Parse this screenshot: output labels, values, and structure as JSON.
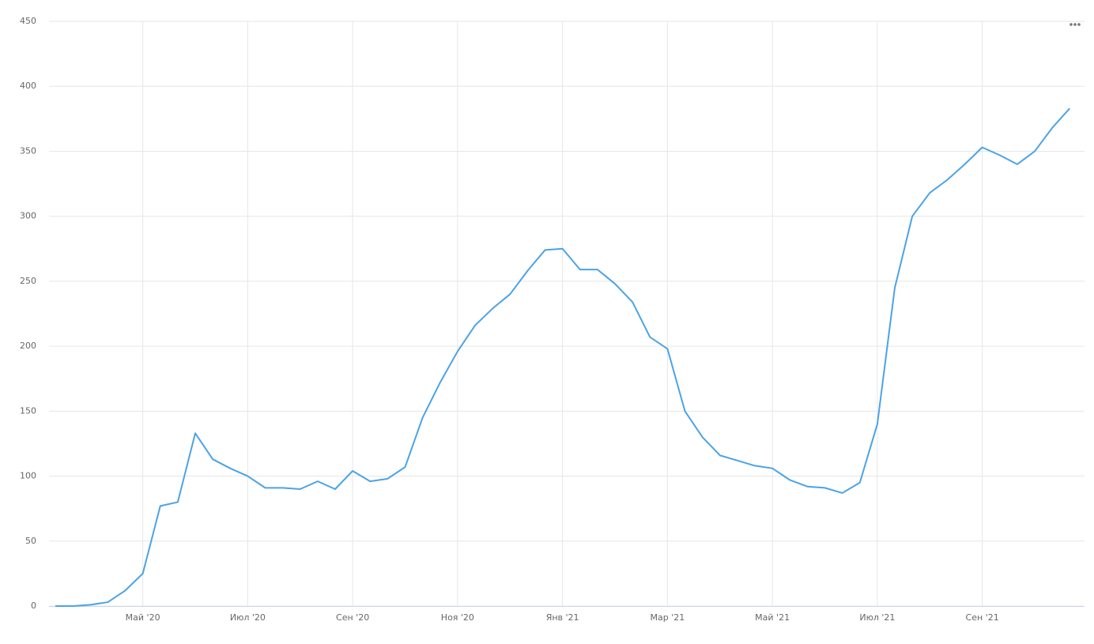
{
  "chart_data": {
    "type": "line",
    "categories": [
      null,
      null,
      null,
      null,
      null,
      "Май '20",
      null,
      null,
      null,
      null,
      null,
      "Июл '20",
      null,
      null,
      null,
      null,
      null,
      "Сен '20",
      null,
      null,
      null,
      null,
      null,
      "Ноя '20",
      null,
      null,
      null,
      null,
      null,
      "Янв '21",
      null,
      null,
      null,
      null,
      null,
      "Мар '21",
      null,
      null,
      null,
      null,
      null,
      "Май '21",
      null,
      null,
      null,
      null,
      null,
      "Июл '21",
      null,
      null,
      null,
      null,
      null,
      "Сен '21",
      null,
      null,
      null,
      null,
      null
    ],
    "values": [
      0,
      0,
      1,
      3,
      12,
      25,
      77,
      80,
      133,
      113,
      106,
      100,
      91,
      91,
      90,
      96,
      90,
      104,
      96,
      98,
      107,
      145,
      172,
      196,
      216,
      229,
      240,
      258,
      274,
      275,
      259,
      259,
      248,
      234,
      207,
      198,
      150,
      130,
      116,
      112,
      108,
      106,
      97,
      92,
      91,
      87,
      95,
      140,
      245,
      300,
      318,
      328,
      340,
      353,
      347,
      340,
      350,
      368,
      383
    ],
    "color": "#4ba3e6",
    "ylim": [
      0,
      450
    ],
    "yticks": [
      0,
      50,
      100,
      150,
      200,
      250,
      300,
      350,
      400,
      450
    ],
    "grid": true
  }
}
